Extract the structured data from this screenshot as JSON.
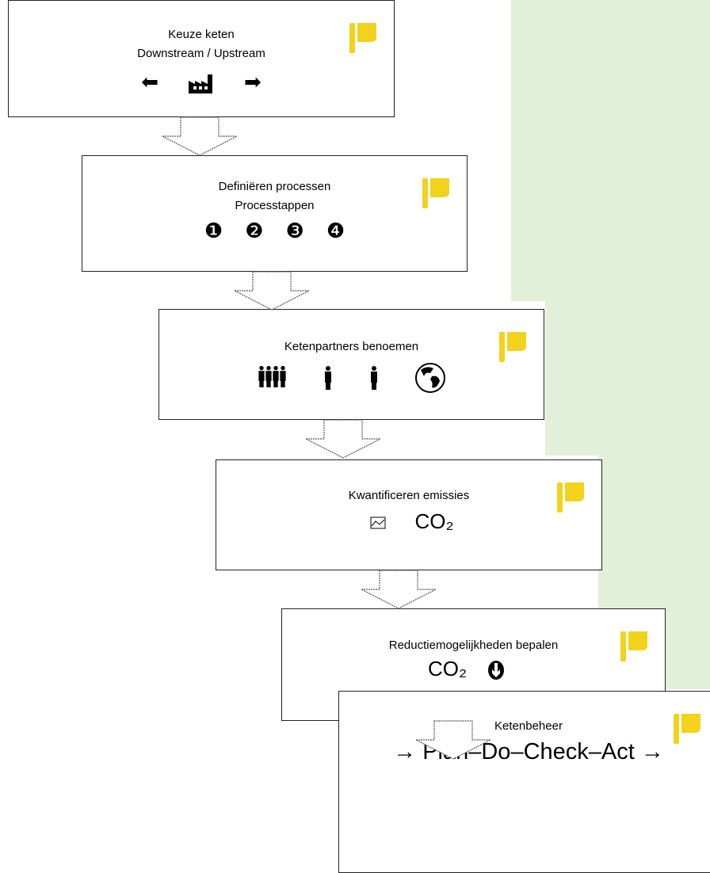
{
  "nodes": [
    {
      "lines": [
        "Keuze keten",
        "Downstream / Upstream"
      ],
      "icons": [
        "⬅",
        "➡"
      ]
    },
    {
      "lines": [
        "Definiëren processen",
        "Processtappen"
      ],
      "icons": [
        "❶",
        "❷",
        "❸",
        "❹"
      ]
    },
    {
      "lines": [
        "Ketenpartners benoemen"
      ],
      "icons": []
    },
    {
      "lines": [
        "Kwantificeren emissies"
      ],
      "icons": [
        "CO₂"
      ]
    },
    {
      "lines": [
        "Reductiemogelijkheden bepalen"
      ],
      "icons": [
        "CO₂"
      ]
    },
    {
      "lines": [
        "Ketenbeheer"
      ],
      "icons": [
        "→ Plan–Do–Check–Act →"
      ]
    }
  ]
}
